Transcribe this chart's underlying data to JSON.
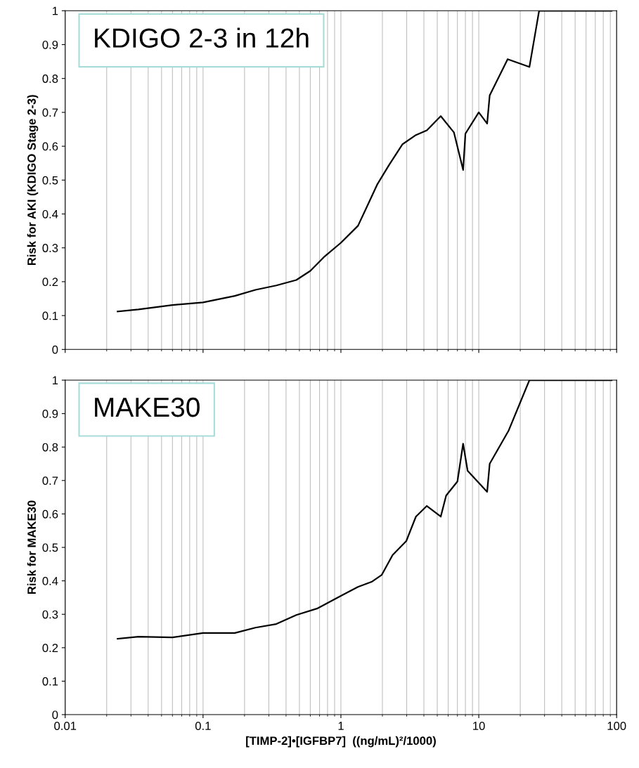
{
  "chart_data": [
    {
      "type": "line",
      "title": "KDIGO 2-3 in 12h",
      "ylabel": "Risk for AKI (KDIGO Stage 2-3)",
      "log": "x",
      "grid": "x",
      "tick_labels": "y",
      "xlim": [
        0.01,
        100
      ],
      "xticks": [
        0.01,
        0.1,
        1,
        10,
        100
      ],
      "ylim": [
        0,
        1
      ],
      "yticks": [
        0,
        0.1,
        0.2,
        0.3,
        0.4,
        0.5,
        0.6,
        0.7,
        0.8,
        0.9,
        1
      ],
      "series": [
        {
          "color": "#000000",
          "x": [
            0.024,
            0.034,
            0.06,
            0.1,
            0.17,
            0.24,
            0.34,
            0.475,
            0.6,
            0.75,
            1.0,
            1.33,
            1.58,
            1.84,
            2.23,
            2.8,
            3.5,
            4.2,
            5.3,
            6.6,
            7.7,
            8.0,
            10,
            11.5,
            12,
            16.2,
            23.3,
            27.4,
            92
          ],
          "values": [
            0.112,
            0.118,
            0.131,
            0.139,
            0.158,
            0.176,
            0.189,
            0.205,
            0.232,
            0.272,
            0.315,
            0.365,
            0.43,
            0.488,
            0.544,
            0.606,
            0.633,
            0.647,
            0.689,
            0.641,
            0.53,
            0.637,
            0.7,
            0.667,
            0.75,
            0.857,
            0.834,
            1,
            1
          ]
        }
      ]
    },
    {
      "type": "line",
      "title": "MAKE30",
      "xlabel": "[TIMP-2]•[IGFBP7]  ((ng/mL)²/1000)",
      "ylabel": "Risk for MAKE30",
      "log": "x",
      "grid": "x",
      "xlim": [
        0.01,
        100
      ],
      "xticks": [
        0.01,
        0.1,
        1,
        10,
        100
      ],
      "ylim": [
        0,
        1
      ],
      "yticks": [
        0,
        0.1,
        0.2,
        0.3,
        0.4,
        0.5,
        0.6,
        0.7,
        0.8,
        0.9,
        1
      ],
      "series": [
        {
          "color": "#000000",
          "x": [
            0.024,
            0.034,
            0.06,
            0.1,
            0.17,
            0.24,
            0.34,
            0.475,
            0.67,
            1.0,
            1.33,
            1.67,
            1.98,
            2.37,
            2.98,
            3.5,
            4.2,
            5.3,
            5.8,
            7.0,
            7.7,
            8.3,
            11.5,
            12,
            16.5,
            23.3,
            92
          ],
          "values": [
            0.227,
            0.233,
            0.231,
            0.244,
            0.244,
            0.26,
            0.271,
            0.298,
            0.317,
            0.355,
            0.382,
            0.397,
            0.418,
            0.477,
            0.519,
            0.592,
            0.624,
            0.592,
            0.655,
            0.697,
            0.81,
            0.729,
            0.666,
            0.75,
            0.85,
            1,
            1
          ]
        }
      ]
    }
  ]
}
